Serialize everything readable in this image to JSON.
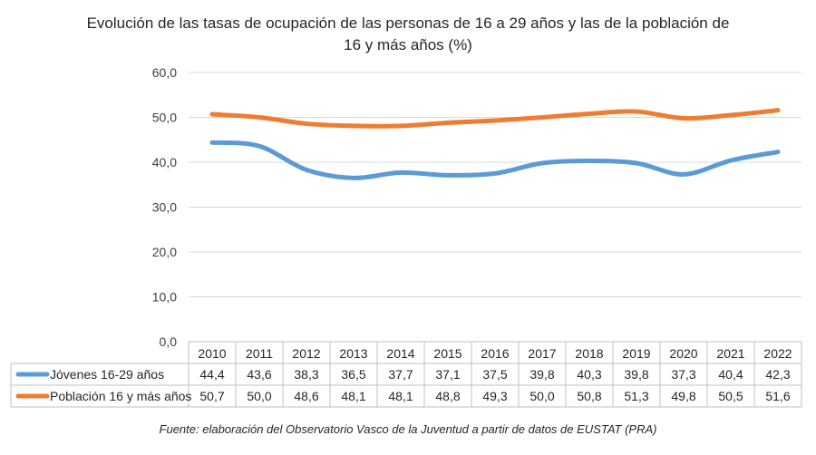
{
  "chart_data": {
    "type": "line",
    "title_line1": "Evolución de las tasas de ocupación de las personas de 16 a 29 años y las de la población de",
    "title_line2": "16 y más años (%)",
    "categories": [
      "2010",
      "2011",
      "2012",
      "2013",
      "2014",
      "2015",
      "2016",
      "2017",
      "2018",
      "2019",
      "2020",
      "2021",
      "2022"
    ],
    "series": [
      {
        "name": "Jóvenes 16-29 años",
        "color": "#5B9BD5",
        "values": [
          44.4,
          43.6,
          38.3,
          36.5,
          37.7,
          37.1,
          37.5,
          39.8,
          40.3,
          39.8,
          37.3,
          40.4,
          42.3
        ],
        "labels": [
          "44,4",
          "43,6",
          "38,3",
          "36,5",
          "37,7",
          "37,1",
          "37,5",
          "39,8",
          "40,3",
          "39,8",
          "37,3",
          "40,4",
          "42,3"
        ]
      },
      {
        "name": "Población 16 y más años",
        "color": "#ED7D31",
        "values": [
          50.7,
          50.0,
          48.6,
          48.1,
          48.1,
          48.8,
          49.3,
          50.0,
          50.8,
          51.3,
          49.8,
          50.5,
          51.6
        ],
        "labels": [
          "50,7",
          "50,0",
          "48,6",
          "48,1",
          "48,1",
          "48,8",
          "49,3",
          "50,0",
          "50,8",
          "51,3",
          "49,8",
          "50,5",
          "51,6"
        ]
      }
    ],
    "ylim": [
      0,
      60
    ],
    "yticks": [
      0,
      10,
      20,
      30,
      40,
      50,
      60
    ],
    "ytick_labels": [
      "0,0",
      "10,0",
      "20,0",
      "30,0",
      "40,0",
      "50,0",
      "60,0"
    ],
    "grid": true,
    "legend": "data-table"
  },
  "source": "Fuente: elaboración del Observatorio Vasco de la Juventud a partir de datos de EUSTAT (PRA)"
}
